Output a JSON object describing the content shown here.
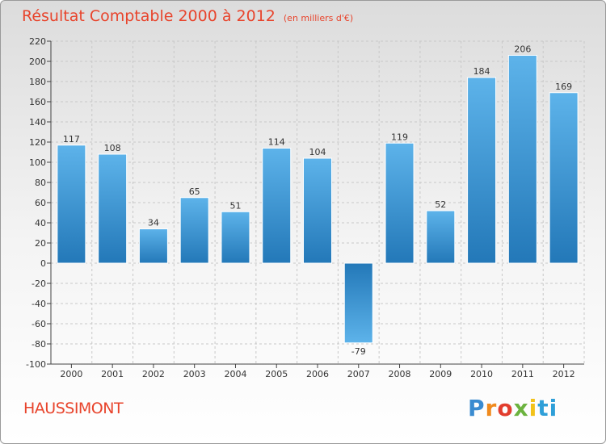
{
  "chart_data": {
    "type": "bar",
    "title": "Résultat Comptable 2000 à 2012",
    "subtitle": "(en milliers d'€)",
    "categories": [
      "2000",
      "2001",
      "2002",
      "2003",
      "2004",
      "2005",
      "2006",
      "2007",
      "2008",
      "2009",
      "2010",
      "2011",
      "2012"
    ],
    "values": [
      117,
      108,
      34,
      65,
      51,
      114,
      104,
      -79,
      119,
      52,
      184,
      206,
      169
    ],
    "ylim": [
      -100,
      220
    ],
    "yticks": [
      220,
      200,
      180,
      160,
      140,
      120,
      100,
      80,
      60,
      40,
      20,
      0,
      -20,
      -40,
      -60,
      -80,
      -100
    ],
    "xlabel": "",
    "ylabel": "",
    "grid": true,
    "bar_color_light": "#5db3ea",
    "bar_color_dark": "#2378b8"
  },
  "footer": {
    "place": "HAUSSIMONT",
    "logo": [
      "P",
      "r",
      "o",
      "x",
      "i",
      "ti"
    ]
  }
}
